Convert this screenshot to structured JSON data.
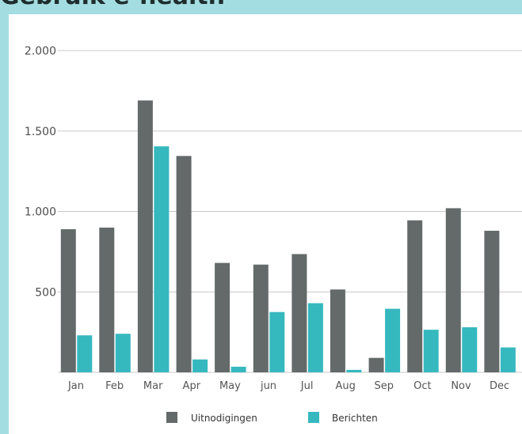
{
  "page": {
    "title": "Gebruik e-health"
  },
  "colors": {
    "background": "#a3dde1",
    "panel": "#ffffff",
    "series1": "#646a69",
    "series2": "#36b8bf",
    "grid": "#c8c8c8"
  },
  "chart_data": {
    "type": "bar",
    "title": "Gebruik e-health",
    "xlabel": "",
    "ylabel": "",
    "categories": [
      "Jan",
      "Feb",
      "Mar",
      "Apr",
      "May",
      "jun",
      "Jul",
      "Aug",
      "Sep",
      "Oct",
      "Nov",
      "Dec"
    ],
    "series": [
      {
        "name": "Uitnodigingen",
        "values": [
          890,
          900,
          1690,
          1345,
          680,
          670,
          735,
          515,
          90,
          945,
          1020,
          880
        ]
      },
      {
        "name": "Berichten",
        "values": [
          230,
          240,
          1405,
          80,
          35,
          375,
          430,
          15,
          395,
          265,
          280,
          155
        ]
      }
    ],
    "ylim": [
      0,
      2000
    ],
    "yticks": [
      500,
      1000,
      1500,
      2000
    ],
    "ytick_labels": [
      "500",
      "1.000",
      "1.500",
      "2.000"
    ],
    "grid": true,
    "legend": "bottom"
  }
}
